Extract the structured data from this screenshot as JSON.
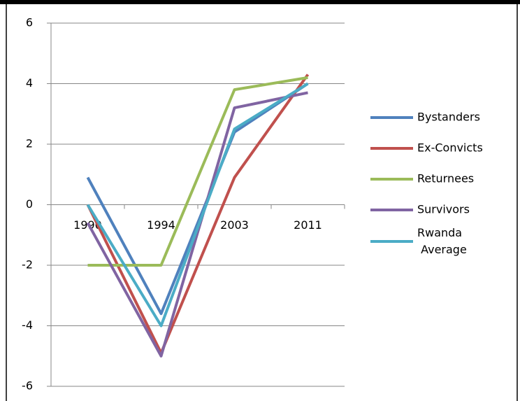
{
  "chart_data": {
    "type": "line",
    "categories": [
      "1990",
      "1994",
      "2003",
      "2011"
    ],
    "series": [
      {
        "name": "Bystanders",
        "color": "#4f81bd",
        "values": [
          0.9,
          -3.6,
          2.4,
          4.0
        ]
      },
      {
        "name": "Ex-Convicts",
        "color": "#c0504d",
        "values": [
          0,
          -4.9,
          0.9,
          4.3
        ]
      },
      {
        "name": "Returnees",
        "color": "#9bbb59",
        "values": [
          -2,
          -2,
          3.8,
          4.2
        ]
      },
      {
        "name": "Survivors",
        "color": "#8064a2",
        "values": [
          -0.6,
          -5,
          3.2,
          3.7
        ]
      },
      {
        "name": "Rwanda Average",
        "color": "#4bacc6",
        "values": [
          0,
          -4,
          2.5,
          4.0
        ]
      }
    ],
    "ylim": [
      -6,
      6
    ],
    "yticks": [
      -6,
      -4,
      -2,
      0,
      2,
      4,
      6
    ],
    "grid": true,
    "legend": "right"
  }
}
